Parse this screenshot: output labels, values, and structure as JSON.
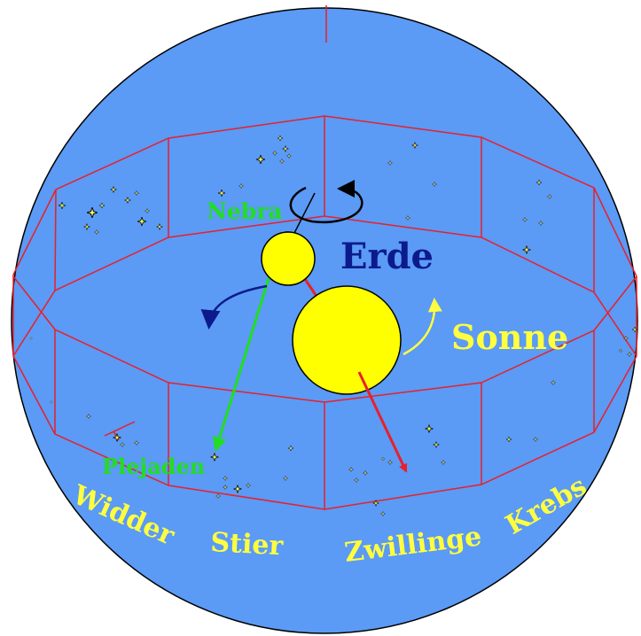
{
  "colors": {
    "sphere": "#5b9af5",
    "zodiac_lines": "#e8202a",
    "sun": "#ffff00",
    "earth": "#ffff00",
    "earth_shadow": "#0a1a8a",
    "sign_labels": "#ffff40",
    "green": "#22dd22",
    "erde_label": "#0b1a8c",
    "sonne_label": "#ffff40",
    "arrow_dark": "#0b1a8c",
    "arrow_black": "#000000",
    "star_fill": "#ffff66"
  },
  "labels": {
    "erde": "Erde",
    "sonne": "Sonne",
    "nebra": "Nebra",
    "plejaden": "Plejaden"
  },
  "zodiac_signs": [
    "Widder",
    "Stier",
    "Zwillinge",
    "Krebs"
  ]
}
